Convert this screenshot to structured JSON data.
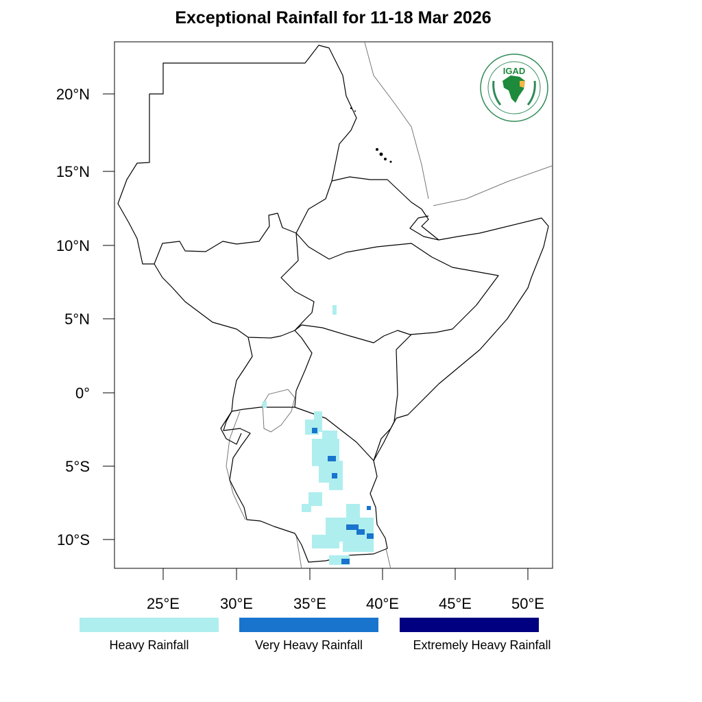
{
  "title": "Exceptional Rainfall for 11-18 Mar 2026",
  "logo": {
    "text": "IGAD",
    "icon": "igad-logo-icon"
  },
  "axes": {
    "lat_ticks": [
      "20°N",
      "15°N",
      "10°N",
      "5°N",
      "0°",
      "5°S",
      "10°S"
    ],
    "lon_ticks": [
      "25°E",
      "30°E",
      "35°E",
      "40°E",
      "45°E",
      "50°E"
    ]
  },
  "legend": [
    {
      "label": "Heavy Rainfall",
      "color": "#AFEEEE"
    },
    {
      "label": "Very Heavy Rainfall",
      "color": "#1874CD"
    },
    {
      "label": "Extremely Heavy Rainfall",
      "color": "#000080"
    }
  ]
}
